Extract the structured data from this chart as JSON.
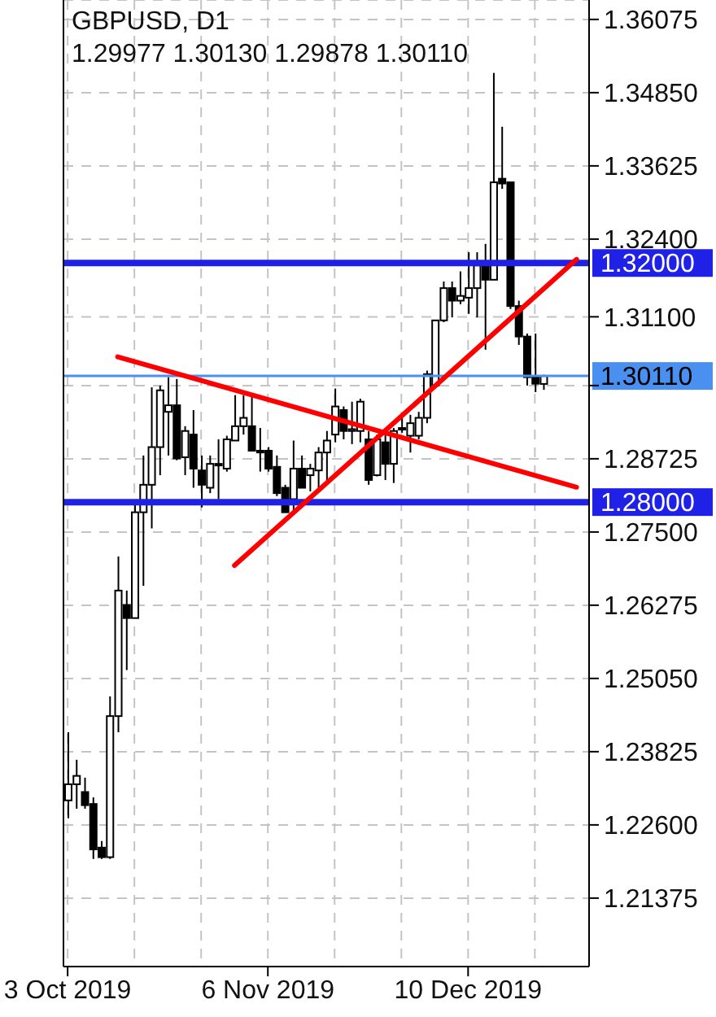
{
  "chart_data": {
    "type": "candlestick",
    "title": "GBPUSD, D1",
    "subtitle": "1.29977 1.30130 1.29878 1.30110",
    "categories": [
      "3 Oct 2019",
      null,
      null,
      null,
      null,
      null,
      null,
      null,
      null,
      null,
      null,
      null,
      null,
      null,
      null,
      null,
      null,
      null,
      null,
      null,
      null,
      null,
      null,
      null,
      "6 Nov 2019",
      null,
      null,
      null,
      null,
      null,
      null,
      null,
      null,
      null,
      null,
      null,
      null,
      null,
      null,
      null,
      null,
      null,
      null,
      null,
      null,
      null,
      null,
      null,
      "10 Dec 2019",
      null,
      null,
      null,
      null,
      null,
      null,
      null,
      null,
      null,
      null,
      null,
      null,
      null,
      null
    ],
    "ohlc": [
      [
        1.2301,
        1.2415,
        1.2271,
        1.2328
      ],
      [
        1.2328,
        1.2369,
        1.2287,
        1.2342
      ],
      [
        1.2315,
        1.2339,
        1.2287,
        1.2293
      ],
      [
        1.2295,
        1.2306,
        1.2203,
        1.2219
      ],
      [
        1.2222,
        1.2233,
        1.2203,
        1.2206
      ],
      [
        1.2206,
        1.2475,
        1.2203,
        1.2442
      ],
      [
        1.2442,
        1.2709,
        1.2415,
        1.2652
      ],
      [
        1.2628,
        1.2652,
        1.2519,
        1.2606
      ],
      [
        1.2606,
        1.2802,
        1.2606,
        1.2783
      ],
      [
        1.2783,
        1.2878,
        1.266,
        1.2829
      ],
      [
        1.2829,
        1.2992,
        1.2756,
        1.2892
      ],
      [
        1.2892,
        1.2995,
        1.2845,
        1.2987
      ],
      [
        1.2951,
        1.3009,
        1.2878,
        1.2962
      ],
      [
        1.2962,
        1.3006,
        1.287,
        1.2873
      ],
      [
        1.2875,
        1.2927,
        1.2845,
        1.2919
      ],
      [
        1.2913,
        1.2954,
        1.2824,
        1.2856
      ],
      [
        1.2853,
        1.2878,
        1.2791,
        1.2829
      ],
      [
        1.2824,
        1.2878,
        1.2815,
        1.2864
      ],
      [
        1.2862,
        1.2905,
        1.2805,
        1.2864
      ],
      [
        1.2856,
        1.2911,
        1.2851,
        1.2905
      ],
      [
        1.2903,
        1.2979,
        1.2903,
        1.2927
      ],
      [
        1.2927,
        1.2979,
        1.2913,
        1.2941
      ],
      [
        1.2927,
        1.2979,
        1.2886,
        1.2886
      ],
      [
        1.2886,
        1.2924,
        1.2851,
        1.2883
      ],
      [
        1.2886,
        1.2892,
        1.2851,
        1.2856
      ],
      [
        1.2859,
        1.2878,
        1.281,
        1.2815
      ],
      [
        1.2824,
        1.2829,
        1.2783,
        1.2783
      ],
      [
        1.2805,
        1.2903,
        1.2783,
        1.2856
      ],
      [
        1.2856,
        1.2878,
        1.2824,
        1.2824
      ],
      [
        1.2845,
        1.2864,
        1.2818,
        1.2856
      ],
      [
        1.2853,
        1.2892,
        1.2824,
        1.2883
      ],
      [
        1.2883,
        1.2919,
        1.2832,
        1.2903
      ],
      [
        1.2913,
        1.299,
        1.29,
        1.296
      ],
      [
        1.2954,
        1.296,
        1.2905,
        1.2919
      ],
      [
        1.2919,
        1.2968,
        1.2897,
        1.2922
      ],
      [
        1.2919,
        1.2973,
        1.29,
        1.2968
      ],
      [
        1.2905,
        1.2919,
        1.2829,
        1.2837
      ],
      [
        1.2845,
        1.2913,
        1.2843,
        1.2905
      ],
      [
        1.29,
        1.2919,
        1.2837,
        1.2864
      ],
      [
        1.2864,
        1.2924,
        1.2832,
        1.2919
      ],
      [
        1.2922,
        1.2943,
        1.2916,
        1.2924
      ],
      [
        1.2911,
        1.2946,
        1.2883,
        1.2932
      ],
      [
        1.2911,
        1.2951,
        1.2905,
        1.2941
      ],
      [
        1.2941,
        1.302,
        1.2932,
        1.3014
      ],
      [
        1.2995,
        1.3104,
        1.2992,
        1.3104
      ],
      [
        1.3104,
        1.3169,
        1.3101,
        1.3158
      ],
      [
        1.3158,
        1.3169,
        1.3109,
        1.3137
      ],
      [
        1.3137,
        1.3186,
        1.3131,
        1.3145
      ],
      [
        1.3142,
        1.3218,
        1.3115,
        1.3158
      ],
      [
        1.3158,
        1.3218,
        1.3109,
        1.3196
      ],
      [
        1.3196,
        1.3232,
        1.3055,
        1.3172
      ],
      [
        1.3172,
        1.3518,
        1.3172,
        1.3335
      ],
      [
        1.3341,
        1.3428,
        1.3324,
        1.3333
      ],
      [
        1.3335,
        1.3335,
        1.3123,
        1.3128
      ],
      [
        1.3128,
        1.3137,
        1.3063,
        1.3077
      ],
      [
        1.3077,
        1.3082,
        1.2995,
        1.3009
      ],
      [
        1.3009,
        1.3082,
        1.2984,
        1.2998
      ],
      [
        1.29977,
        1.3013,
        1.29878,
        1.3011
      ],
      null,
      null,
      null,
      null,
      null
    ],
    "series": [
      {
        "type": "line",
        "color": "#ff0000",
        "values": [
          null,
          null,
          null,
          null,
          null,
          null,
          1.3043,
          null,
          null,
          null,
          null,
          null,
          null,
          null,
          null,
          null,
          null,
          null,
          null,
          null,
          null,
          null,
          null,
          null,
          null,
          null,
          null,
          null,
          null,
          null,
          null,
          null,
          null,
          null,
          null,
          null,
          null,
          null,
          null,
          null,
          null,
          null,
          null,
          null,
          null,
          null,
          null,
          null,
          null,
          null,
          null,
          null,
          null,
          null,
          null,
          null,
          null,
          null,
          null,
          null,
          null,
          1.2825,
          null
        ]
      },
      {
        "type": "line",
        "color": "#ff0000",
        "values": [
          null,
          null,
          null,
          null,
          null,
          null,
          null,
          null,
          null,
          null,
          null,
          null,
          null,
          null,
          null,
          null,
          null,
          null,
          null,
          null,
          1.2694,
          null,
          null,
          null,
          null,
          null,
          null,
          null,
          null,
          null,
          null,
          null,
          null,
          null,
          null,
          null,
          null,
          null,
          null,
          null,
          null,
          null,
          null,
          null,
          null,
          null,
          null,
          null,
          null,
          null,
          null,
          null,
          null,
          null,
          null,
          null,
          null,
          null,
          null,
          null,
          null,
          1.3206,
          null
        ]
      }
    ],
    "ylim": [
      1.2023,
      1.364
    ],
    "yticks": [
      {
        "value": 1.36075,
        "label": "1.36075"
      },
      {
        "value": 1.3485,
        "label": "1.34850"
      },
      {
        "value": 1.33625,
        "label": "1.33625"
      },
      {
        "value": 1.324,
        "label": "1.32400"
      },
      {
        "value": 1.311,
        "label": "1.31100"
      },
      {
        "value": 1.2995,
        "label": null
      },
      {
        "value": 1.28725,
        "label": "1.28725"
      },
      {
        "value": 1.275,
        "label": "1.27500"
      },
      {
        "value": 1.26275,
        "label": "1.26275"
      },
      {
        "value": 1.2505,
        "label": "1.25050"
      },
      {
        "value": 1.23825,
        "label": "1.23825"
      },
      {
        "value": 1.226,
        "label": "1.22600"
      },
      {
        "value": 1.21375,
        "label": "1.21375"
      }
    ],
    "ref_lines": [
      {
        "axis": "y",
        "value": 1.32,
        "label": "1.32000",
        "color": "#1f22e6"
      },
      {
        "axis": "y",
        "value": 1.3011,
        "label": "1.30110",
        "color": "#4a90f0"
      },
      {
        "axis": "y",
        "value": 1.28,
        "label": "1.28000",
        "color": "#1f22e6"
      }
    ],
    "grid": true
  }
}
